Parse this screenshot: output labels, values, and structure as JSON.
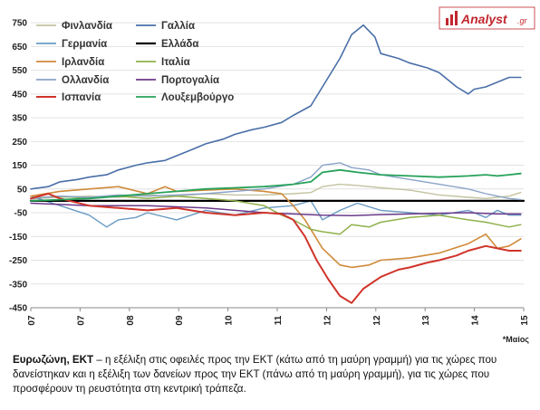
{
  "logo": {
    "name": "Analyst",
    "suffix": ".gr"
  },
  "note": "*Μαίος",
  "caption": {
    "bold": "Ευρωζώνη, ΕΚΤ",
    "text": " – η εξέλιξη στις οφειλές προς την ΕΚΤ (κάτω από τη μαύρη γραμμή) για τις χώρες που δανείστηκαν και η εξέλιξη των δανείων προς την ΕΚΤ (πάνω από τη μαύρη γραμμή), για τις χώρες που προσφέρουν τη ρευστότητα στη κεντρική τράπεζα."
  },
  "chart_data": {
    "type": "line",
    "title": "",
    "xlabel": "",
    "ylabel": "",
    "ylim": [
      -450,
      800
    ],
    "yticks": [
      750,
      650,
      550,
      450,
      350,
      250,
      150,
      50,
      -50,
      -150,
      -250,
      -350,
      -450
    ],
    "xlim": [
      2007.0,
      2015.45
    ],
    "xtick_labels": [
      "07",
      "07",
      "08",
      "09",
      "10",
      "11",
      "12",
      "12",
      "13",
      "14",
      "15"
    ],
    "legend": {
      "placement": "top-left",
      "columns": 2
    },
    "series": [
      {
        "name": "Φινλανδία",
        "color": "#c3c3a0",
        "width": 1.4,
        "x": [
          2007.0,
          2007.5,
          2008.0,
          2008.5,
          2009.0,
          2009.5,
          2010.0,
          2010.5,
          2011.0,
          2011.5,
          2011.8,
          2012.0,
          2012.3,
          2012.6,
          2013.0,
          2013.5,
          2014.0,
          2014.5,
          2014.8,
          2015.0,
          2015.2,
          2015.4
        ],
        "y": [
          10,
          15,
          20,
          15,
          25,
          20,
          30,
          25,
          25,
          30,
          35,
          60,
          70,
          65,
          55,
          45,
          25,
          15,
          10,
          15,
          20,
          35
        ]
      },
      {
        "name": "Γαλλία",
        "color": "#4a6fa8",
        "width": 1.6,
        "x": [
          2007.0,
          2007.3,
          2007.5,
          2007.8,
          2008.0,
          2008.3,
          2008.5,
          2008.8,
          2009.0,
          2009.3,
          2009.5,
          2009.8,
          2010.0,
          2010.3,
          2010.5,
          2010.8,
          2011.0,
          2011.3,
          2011.5,
          2011.8,
          2012.0,
          2012.3,
          2012.5,
          2012.7,
          2012.9,
          2013.0,
          2013.3,
          2013.5,
          2013.8,
          2014.0,
          2014.3,
          2014.5,
          2014.6,
          2014.8,
          2015.0,
          2015.2,
          2015.4
        ],
        "y": [
          50,
          60,
          80,
          90,
          100,
          110,
          130,
          150,
          160,
          170,
          190,
          220,
          240,
          260,
          280,
          300,
          310,
          330,
          360,
          400,
          480,
          600,
          700,
          740,
          690,
          620,
          600,
          580,
          560,
          540,
          480,
          450,
          470,
          480,
          500,
          520,
          520
        ]
      },
      {
        "name": "Γερμανία",
        "color": "#6a9bc4",
        "width": 1.4,
        "x": [
          2007.0,
          2007.5,
          2008.0,
          2008.3,
          2008.5,
          2008.8,
          2009.0,
          2009.5,
          2010.0,
          2010.5,
          2011.0,
          2011.5,
          2011.8,
          2012.0,
          2012.3,
          2012.6,
          2013.0,
          2013.5,
          2014.0,
          2014.5,
          2014.8,
          2015.0,
          2015.2,
          2015.4
        ],
        "y": [
          20,
          -20,
          -60,
          -110,
          -80,
          -70,
          -50,
          -80,
          -40,
          -60,
          -30,
          -20,
          0,
          -80,
          -40,
          -10,
          -40,
          -50,
          -60,
          -40,
          -70,
          -40,
          -60,
          -60
        ]
      },
      {
        "name": "Ελλάδα",
        "color": "#000000",
        "width": 2.2,
        "x": [
          2007.0,
          2015.45
        ],
        "y": [
          0,
          0
        ]
      },
      {
        "name": "Ιρλανδία",
        "color": "#d08a3a",
        "width": 1.6,
        "x": [
          2007.0,
          2007.5,
          2008.0,
          2008.5,
          2009.0,
          2009.3,
          2009.5,
          2010.0,
          2010.5,
          2011.0,
          2011.3,
          2011.5,
          2011.7,
          2012.0,
          2012.3,
          2012.5,
          2012.8,
          2013.0,
          2013.5,
          2014.0,
          2014.5,
          2014.8,
          2015.0,
          2015.2,
          2015.4
        ],
        "y": [
          20,
          40,
          50,
          60,
          30,
          60,
          40,
          45,
          50,
          40,
          30,
          -20,
          -80,
          -200,
          -270,
          -280,
          -270,
          -250,
          -240,
          -220,
          -180,
          -140,
          -200,
          -190,
          -160
        ]
      },
      {
        "name": "Ιταλία",
        "color": "#8fb04a",
        "width": 1.5,
        "x": [
          2007.0,
          2007.5,
          2008.0,
          2008.5,
          2009.0,
          2009.5,
          2010.0,
          2010.5,
          2011.0,
          2011.3,
          2011.5,
          2011.8,
          2012.0,
          2012.3,
          2012.5,
          2012.8,
          2013.0,
          2013.5,
          2014.0,
          2014.5,
          2014.8,
          2015.0,
          2015.2,
          2015.4
        ],
        "y": [
          10,
          20,
          10,
          20,
          10,
          20,
          10,
          0,
          -20,
          -60,
          -80,
          -120,
          -130,
          -140,
          -100,
          -110,
          -90,
          -70,
          -60,
          -80,
          -90,
          -100,
          -110,
          -100
        ]
      },
      {
        "name": "Ολλανδία",
        "color": "#8aa3c8",
        "width": 1.4,
        "x": [
          2007.0,
          2007.5,
          2008.0,
          2008.5,
          2009.0,
          2009.5,
          2010.0,
          2010.5,
          2011.0,
          2011.5,
          2011.8,
          2012.0,
          2012.3,
          2012.5,
          2012.8,
          2013.0,
          2013.5,
          2014.0,
          2014.5,
          2014.8,
          2015.0,
          2015.2,
          2015.4
        ],
        "y": [
          10,
          20,
          15,
          25,
          20,
          25,
          30,
          40,
          50,
          70,
          100,
          150,
          160,
          140,
          130,
          110,
          90,
          70,
          50,
          30,
          20,
          10,
          5
        ]
      },
      {
        "name": "Πορτογαλία",
        "color": "#6b3a8a",
        "width": 1.5,
        "x": [
          2007.0,
          2007.5,
          2008.0,
          2008.5,
          2009.0,
          2009.5,
          2010.0,
          2010.5,
          2011.0,
          2011.5,
          2012.0,
          2012.5,
          2013.0,
          2013.5,
          2014.0,
          2014.5,
          2015.0,
          2015.4
        ],
        "y": [
          -10,
          -15,
          -20,
          -20,
          -20,
          -25,
          -30,
          -40,
          -50,
          -55,
          -60,
          -62,
          -58,
          -55,
          -52,
          -50,
          -55,
          -55
        ]
      },
      {
        "name": "Ισπανία",
        "color": "#d0342a",
        "width": 2.0,
        "x": [
          2007.0,
          2007.3,
          2007.5,
          2008.0,
          2008.5,
          2009.0,
          2009.5,
          2010.0,
          2010.5,
          2011.0,
          2011.3,
          2011.5,
          2011.7,
          2011.9,
          2012.1,
          2012.3,
          2012.5,
          2012.7,
          2013.0,
          2013.3,
          2013.5,
          2013.8,
          2014.0,
          2014.3,
          2014.5,
          2014.8,
          2015.0,
          2015.2,
          2015.4
        ],
        "y": [
          10,
          30,
          10,
          -20,
          -30,
          -40,
          -30,
          -50,
          -60,
          -50,
          -55,
          -80,
          -150,
          -250,
          -330,
          -400,
          -430,
          -370,
          -320,
          -290,
          -280,
          -260,
          -250,
          -230,
          -210,
          -190,
          -200,
          -210,
          -210
        ]
      },
      {
        "name": "Λουξεμβούργο",
        "color": "#27a25a",
        "width": 1.8,
        "x": [
          2007.0,
          2007.5,
          2008.0,
          2008.5,
          2009.0,
          2009.5,
          2010.0,
          2010.5,
          2011.0,
          2011.5,
          2011.8,
          2012.0,
          2012.3,
          2012.6,
          2013.0,
          2013.5,
          2014.0,
          2014.5,
          2014.8,
          2015.0,
          2015.2,
          2015.4
        ],
        "y": [
          0,
          5,
          10,
          20,
          30,
          40,
          50,
          55,
          60,
          70,
          80,
          120,
          130,
          120,
          110,
          105,
          100,
          105,
          110,
          105,
          110,
          115
        ]
      }
    ]
  }
}
